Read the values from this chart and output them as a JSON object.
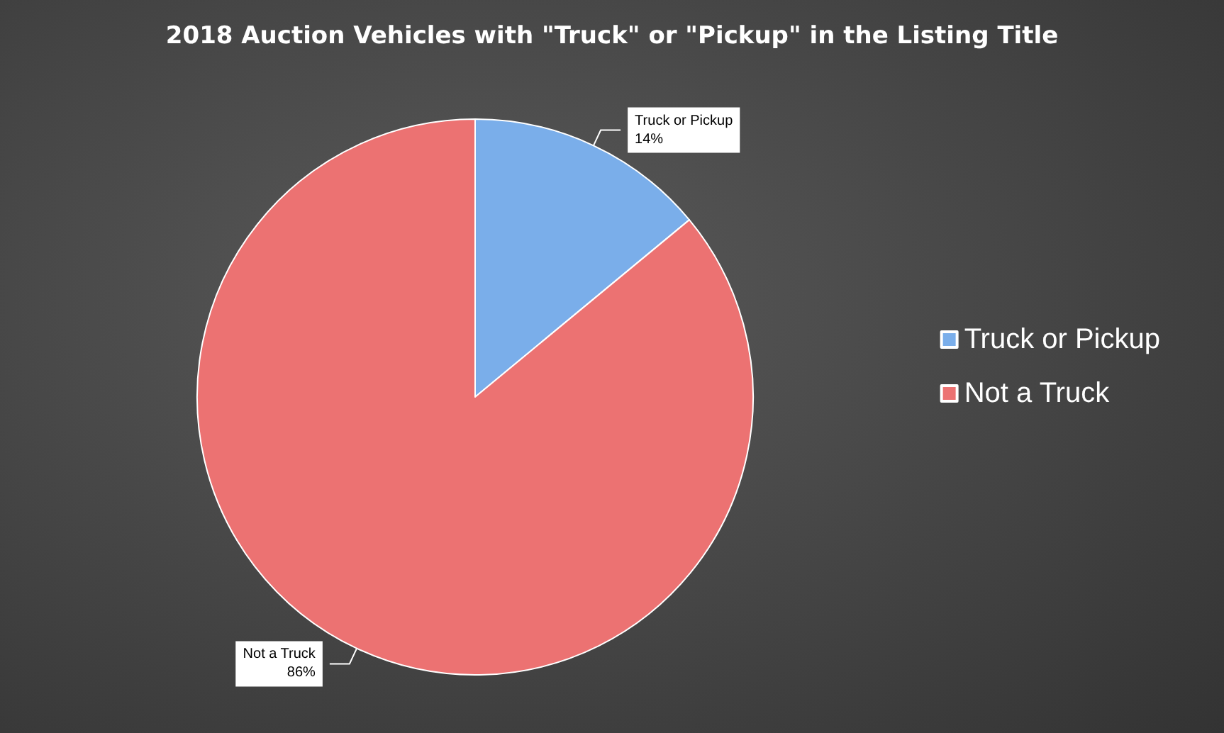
{
  "chart_data": {
    "type": "pie",
    "title": "2018 Auction Vehicles with \"Truck\" or \"Pickup\" in the Listing Title",
    "categories": [
      "Truck or Pickup",
      "Not a Truck"
    ],
    "values": [
      14,
      86
    ],
    "colors": [
      "#7aaeea",
      "#ec7272"
    ],
    "value_labels": [
      "14%",
      "86%"
    ],
    "legend": "right"
  }
}
